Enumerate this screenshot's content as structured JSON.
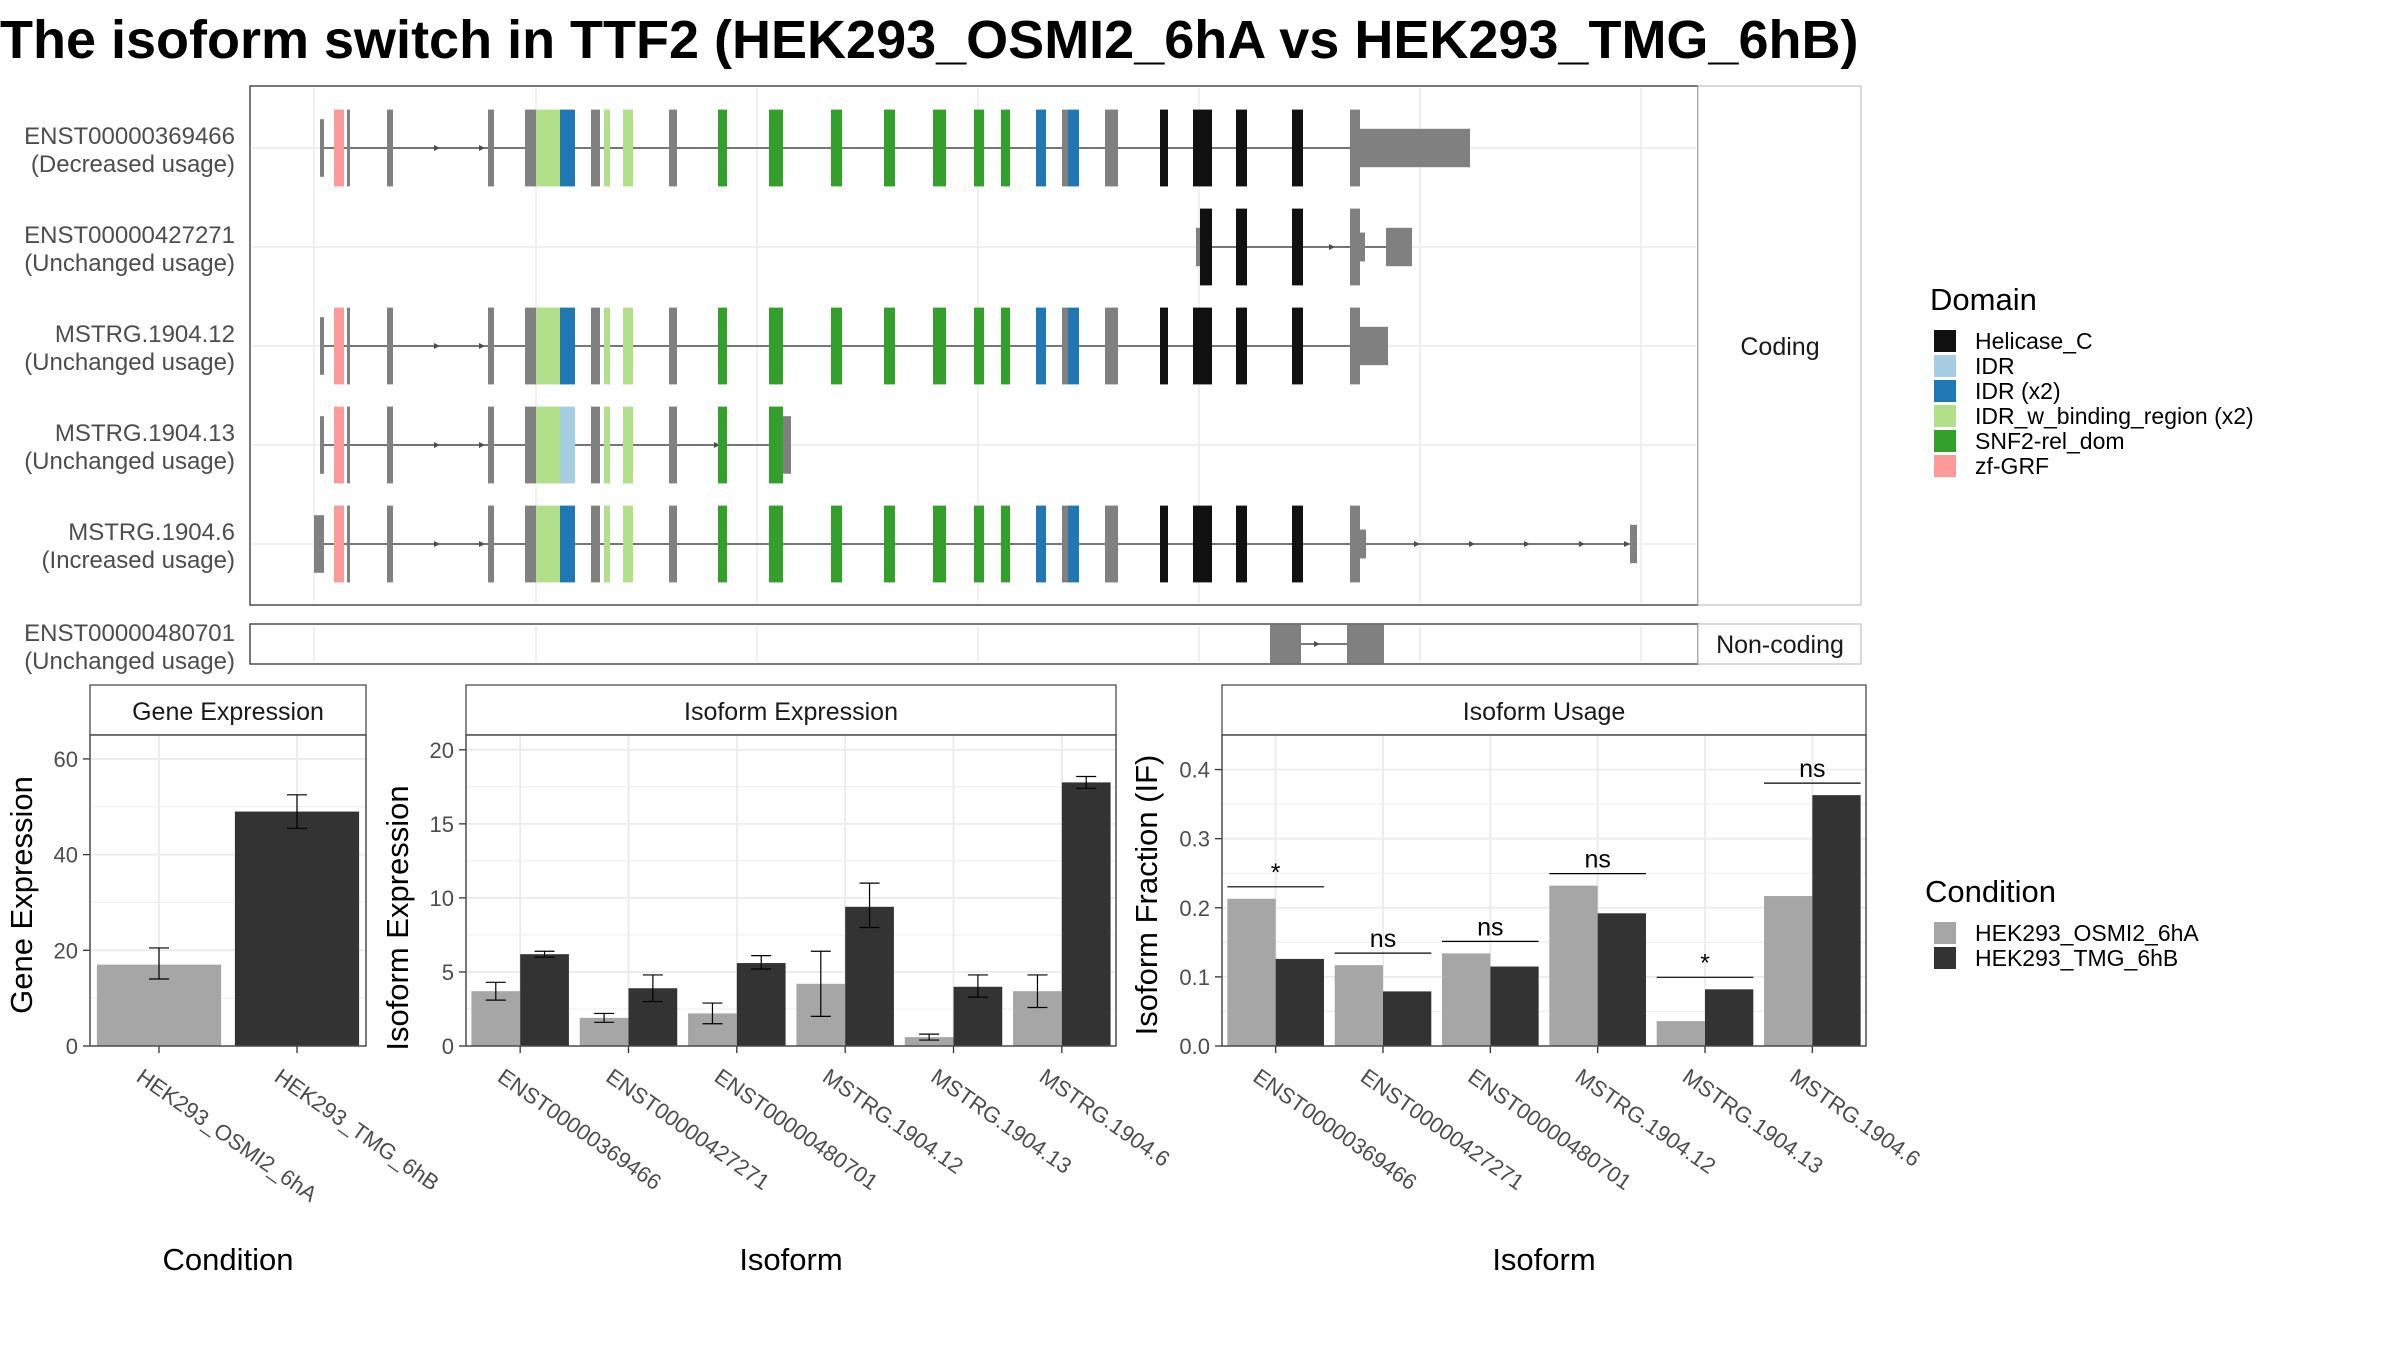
{
  "title": "The isoform switch in TTF2 (HEK293_OSMI2_6hA vs HEK293_TMG_6hB)",
  "colors": {
    "condition_a": "#a6a6a6",
    "condition_b": "#333333",
    "exon": "#808080",
    "intron": "#4d4d4d",
    "panel_border": "#4d4d4d",
    "grid": "#ebebeb",
    "strip_bg": "#ffffff"
  },
  "structure": {
    "coding_facet_label": "Coding",
    "noncoding_facet_label": "Non-coding",
    "domain_legend_title": "Domain",
    "domains": [
      {
        "name": "Helicase_C",
        "color": "#111111"
      },
      {
        "name": "IDR",
        "color": "#a6cee3"
      },
      {
        "name": "IDR (x2)",
        "color": "#1f78b4"
      },
      {
        "name": "IDR_w_binding_region (x2)",
        "color": "#b2df8a"
      },
      {
        "name": "SNF2-rel_dom",
        "color": "#33a02c"
      },
      {
        "name": "zf-GRF",
        "color": "#fb9a99"
      }
    ],
    "coding_transcripts": [
      {
        "id": "ENST00000369466",
        "usage": "(Decreased usage)"
      },
      {
        "id": "ENST00000427271",
        "usage": "(Unchanged usage)"
      },
      {
        "id": "MSTRG.1904.12",
        "usage": "(Unchanged usage)"
      },
      {
        "id": "MSTRG.1904.13",
        "usage": "(Unchanged usage)"
      },
      {
        "id": "MSTRG.1904.6",
        "usage": "(Increased usage)"
      }
    ],
    "noncoding_transcripts": [
      {
        "id": "ENST00000480701",
        "usage": "(Unchanged usage)"
      }
    ]
  },
  "condition_legend": {
    "title": "Condition",
    "items": [
      "HEK293_OSMI2_6hA",
      "HEK293_TMG_6hB"
    ]
  },
  "chart_data": [
    {
      "type": "bar",
      "title": "Gene Expression",
      "xlabel": "Condition",
      "ylabel": "Gene Expression",
      "ylim": [
        0,
        65
      ],
      "yticks": [
        0,
        20,
        40,
        60
      ],
      "categories": [
        "HEK293_OSMI2_6hA",
        "HEK293_TMG_6hB"
      ],
      "values": [
        17,
        49
      ],
      "errors": [
        [
          14,
          20.5
        ],
        [
          45.5,
          52.5
        ]
      ]
    },
    {
      "type": "bar",
      "title": "Isoform Expression",
      "xlabel": "Isoform",
      "ylabel": "Isoform Expression",
      "ylim": [
        0,
        21
      ],
      "yticks": [
        0,
        5,
        10,
        15,
        20
      ],
      "categories": [
        "ENST00000369466",
        "ENST00000427271",
        "ENST00000480701",
        "MSTRG.1904.12",
        "MSTRG.1904.13",
        "MSTRG.1904.6"
      ],
      "series": [
        {
          "name": "HEK293_OSMI2_6hA",
          "values": [
            3.7,
            1.9,
            2.2,
            4.2,
            0.6,
            3.7
          ],
          "errors": [
            [
              3.1,
              4.3
            ],
            [
              1.6,
              2.2
            ],
            [
              1.5,
              2.9
            ],
            [
              2.0,
              6.4
            ],
            [
              0.4,
              0.8
            ],
            [
              2.6,
              4.8
            ]
          ]
        },
        {
          "name": "HEK293_TMG_6hB",
          "values": [
            6.2,
            3.9,
            5.6,
            9.4,
            4.0,
            17.8
          ],
          "errors": [
            [
              6.0,
              6.4
            ],
            [
              3.0,
              4.8
            ],
            [
              5.2,
              6.1
            ],
            [
              8.0,
              11.0
            ],
            [
              3.3,
              4.8
            ],
            [
              17.4,
              18.2
            ]
          ]
        }
      ]
    },
    {
      "type": "bar",
      "title": "Isoform Usage",
      "xlabel": "Isoform",
      "ylabel": "Isoform Fraction (IF)",
      "ylim": [
        0,
        0.45
      ],
      "yticks": [
        0.0,
        0.1,
        0.2,
        0.3,
        0.4
      ],
      "ytick_labels": [
        "0.0",
        "0.1",
        "0.2",
        "0.3",
        "0.4"
      ],
      "categories": [
        "ENST00000369466",
        "ENST00000427271",
        "ENST00000480701",
        "MSTRG.1904.12",
        "MSTRG.1904.13",
        "MSTRG.1904.6"
      ],
      "series": [
        {
          "name": "HEK293_OSMI2_6hA",
          "values": [
            0.213,
            0.117,
            0.134,
            0.232,
            0.036,
            0.217
          ]
        },
        {
          "name": "HEK293_TMG_6hB",
          "values": [
            0.126,
            0.079,
            0.115,
            0.192,
            0.082,
            0.363
          ]
        }
      ],
      "significance": [
        "*",
        "ns",
        "ns",
        "ns",
        "*",
        "ns"
      ]
    }
  ]
}
